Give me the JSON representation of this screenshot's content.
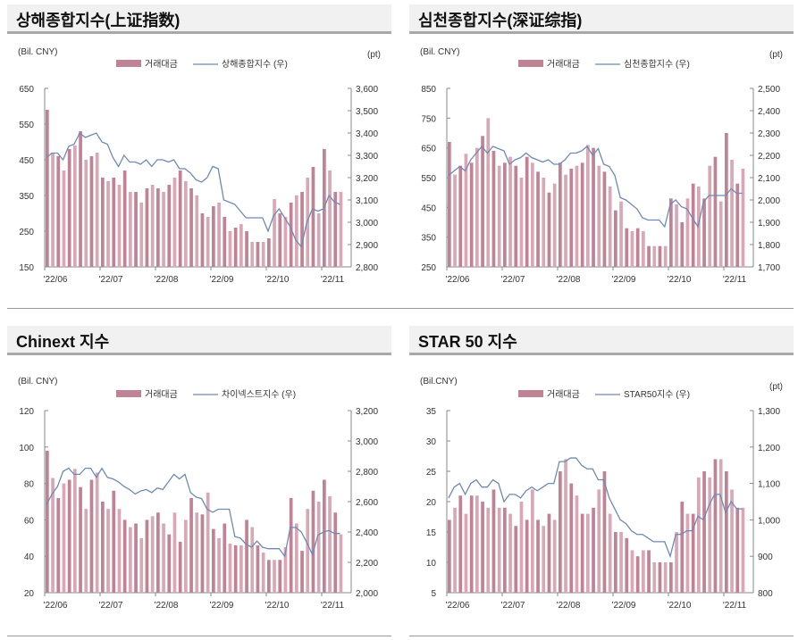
{
  "colors": {
    "bar": "#d7a9b7",
    "bar_dark": "#c08396",
    "line": "#6f89b5",
    "axis": "#888888"
  },
  "chart_data": [
    {
      "type": "bar+line",
      "title": "상해종합지수(上证指数)",
      "left_unit": "(Bil. CNY)",
      "right_unit": "(pt)",
      "legend": [
        "거래대금",
        "상해종합지수 (우)"
      ],
      "legend_placement": "top",
      "x_ticks": [
        "'22/06",
        "'22/07",
        "'22/08",
        "'22/09",
        "'22/10",
        "'22/11"
      ],
      "ylim_left": [
        150,
        650
      ],
      "yticks_left": [
        "650",
        "550",
        "450",
        "350",
        "250",
        "150"
      ],
      "ylim_right": [
        2800,
        3600
      ],
      "yticks_right": [
        "3,600",
        "3,500",
        "3,400",
        "3,300",
        "3,200",
        "3,100",
        "3,000",
        "2,900",
        "2,800"
      ],
      "series": [
        {
          "name": "거래대금",
          "axis": "left",
          "values": [
            590,
            470,
            460,
            420,
            480,
            490,
            530,
            450,
            460,
            470,
            400,
            390,
            400,
            380,
            420,
            360,
            360,
            330,
            370,
            380,
            370,
            360,
            380,
            400,
            420,
            390,
            370,
            350,
            300,
            290,
            320,
            330,
            290,
            250,
            260,
            270,
            250,
            220,
            220,
            220,
            230,
            340,
            300,
            290,
            330,
            350,
            360,
            400,
            430,
            300,
            480,
            420,
            360,
            360
          ]
        },
        {
          "name": "상해종합지수 (우)",
          "axis": "right",
          "values": [
            3290,
            3310,
            3310,
            3280,
            3340,
            3350,
            3400,
            3380,
            3390,
            3400,
            3360,
            3350,
            3290,
            3250,
            3300,
            3270,
            3270,
            3260,
            3280,
            3250,
            3280,
            3280,
            3270,
            3280,
            3240,
            3240,
            3220,
            3190,
            3180,
            3200,
            3250,
            3240,
            3100,
            3090,
            3080,
            3050,
            3020,
            3020,
            3020,
            3020,
            2960,
            3030,
            3060,
            3020,
            2980,
            2920,
            2890,
            3000,
            3060,
            3050,
            3060,
            3120,
            3090,
            3080
          ]
        }
      ]
    },
    {
      "type": "bar+line",
      "title": "심천종합지수(深证综指)",
      "left_unit": "(Bil. CNY)",
      "right_unit": "(pt)",
      "legend": [
        "거래대금",
        "심천종합지수 (우)"
      ],
      "legend_placement": "top",
      "x_ticks": [
        "'22/06",
        "'22/07",
        "'22/08",
        "'22/09",
        "'22/10",
        "'22/11"
      ],
      "ylim_left": [
        250,
        850
      ],
      "yticks_left": [
        "850",
        "750",
        "650",
        "550",
        "450",
        "350",
        "250"
      ],
      "ylim_right": [
        1700,
        2500
      ],
      "yticks_right": [
        "2,500",
        "2,400",
        "2,300",
        "2,200",
        "2,100",
        "2,000",
        "1,900",
        "1,800",
        "1,700"
      ],
      "series": [
        {
          "name": "거래대금",
          "axis": "left",
          "values": [
            670,
            560,
            590,
            630,
            600,
            650,
            690,
            750,
            640,
            590,
            600,
            620,
            590,
            550,
            620,
            600,
            570,
            550,
            500,
            530,
            600,
            560,
            580,
            590,
            600,
            660,
            650,
            590,
            570,
            520,
            440,
            470,
            380,
            370,
            380,
            370,
            320,
            320,
            320,
            320,
            480,
            460,
            400,
            480,
            530,
            520,
            480,
            590,
            620,
            470,
            700,
            610,
            530,
            580
          ]
        },
        {
          "name": "심천종합지수 (우)",
          "axis": "right",
          "values": [
            2110,
            2130,
            2150,
            2130,
            2180,
            2210,
            2240,
            2210,
            2240,
            2230,
            2220,
            2160,
            2180,
            2190,
            2210,
            2190,
            2180,
            2170,
            2180,
            2160,
            2160,
            2180,
            2210,
            2210,
            2220,
            2240,
            2200,
            2230,
            2160,
            2150,
            2110,
            2010,
            2000,
            1980,
            1960,
            1920,
            1910,
            1910,
            1910,
            1880,
            1980,
            2000,
            1970,
            1960,
            1920,
            1880,
            1990,
            2020,
            2020,
            2020,
            2020,
            2050,
            2030,
            2030
          ]
        }
      ]
    },
    {
      "type": "bar+line",
      "title": "Chinext 지수",
      "left_unit": "(Bil. CNY)",
      "right_unit": "",
      "legend": [
        "거래대금",
        "차이넥스트지수 (우)"
      ],
      "legend_placement": "top",
      "x_ticks": [
        "'22/06",
        "'22/07",
        "'22/08",
        "'22/09",
        "'22/10",
        "'22/11"
      ],
      "ylim_left": [
        20,
        120
      ],
      "yticks_left": [
        "120",
        "100",
        "80",
        "60",
        "40",
        "20"
      ],
      "ylim_right": [
        2000,
        3200
      ],
      "yticks_right": [
        "3,200",
        "3,000",
        "2,800",
        "2,600",
        "2,400",
        "2,200",
        "2,000"
      ],
      "series": [
        {
          "name": "거래대금",
          "axis": "left",
          "values": [
            98,
            83,
            72,
            80,
            82,
            88,
            78,
            66,
            82,
            86,
            70,
            66,
            76,
            66,
            60,
            56,
            58,
            50,
            60,
            62,
            64,
            58,
            52,
            64,
            48,
            60,
            72,
            64,
            63,
            75,
            55,
            50,
            58,
            47,
            46,
            46,
            60,
            56,
            46,
            42,
            38,
            38,
            38,
            45,
            72,
            58,
            43,
            66,
            76,
            70,
            82,
            73,
            64,
            52
          ]
        },
        {
          "name": "차이넥스트지수 (우)",
          "axis": "right",
          "values": [
            2580,
            2650,
            2700,
            2800,
            2820,
            2780,
            2780,
            2820,
            2820,
            2760,
            2820,
            2760,
            2750,
            2730,
            2700,
            2680,
            2650,
            2670,
            2680,
            2660,
            2690,
            2680,
            2730,
            2780,
            2750,
            2780,
            2660,
            2630,
            2620,
            2550,
            2530,
            2550,
            2550,
            2550,
            2370,
            2360,
            2320,
            2300,
            2340,
            2300,
            2290,
            2290,
            2290,
            2240,
            2430,
            2430,
            2400,
            2330,
            2250,
            2380,
            2400,
            2410,
            2390,
            2390
          ]
        }
      ]
    },
    {
      "type": "bar+line",
      "title": "STAR 50 지수",
      "left_unit": "(Bil.CNY)",
      "right_unit": "(pt)",
      "legend": [
        "거래대금",
        "STAR50지수 (우)"
      ],
      "legend_placement": "top",
      "x_ticks": [
        "'22/06",
        "'22/07",
        "'22/08",
        "'22/09",
        "'22/10",
        "'22/11"
      ],
      "ylim_left": [
        5,
        35
      ],
      "yticks_left": [
        "35",
        "30",
        "25",
        "20",
        "15",
        "10",
        "5"
      ],
      "ylim_right": [
        800,
        1300
      ],
      "yticks_right": [
        "1,300",
        "1,200",
        "1,100",
        "1,000",
        "900",
        "800"
      ],
      "series": [
        {
          "name": "거래대금",
          "axis": "left",
          "values": [
            17,
            19,
            21,
            18,
            21,
            21,
            20,
            19,
            22,
            19,
            19,
            18,
            16,
            20,
            17,
            22,
            17,
            16,
            18,
            17,
            25,
            27,
            23,
            21,
            18,
            18,
            19,
            22,
            25,
            18,
            15,
            15,
            14,
            12,
            11,
            12,
            12,
            10,
            10,
            10,
            10,
            15,
            20,
            18,
            18,
            24,
            25,
            24,
            27,
            27,
            25,
            22,
            19,
            19
          ]
        },
        {
          "name": "STAR50지수 (우)",
          "axis": "right",
          "values": [
            1060,
            1090,
            1100,
            1070,
            1100,
            1110,
            1090,
            1090,
            1110,
            1100,
            1050,
            1070,
            1070,
            1060,
            1080,
            1090,
            1080,
            1090,
            1100,
            1100,
            1160,
            1160,
            1170,
            1170,
            1150,
            1140,
            1140,
            1110,
            1110,
            1060,
            1030,
            1000,
            990,
            970,
            960,
            960,
            950,
            940,
            940,
            940,
            900,
            960,
            960,
            970,
            970,
            1010,
            1000,
            1040,
            1070,
            1070,
            1020,
            1050,
            1030,
            1030
          ]
        }
      ]
    }
  ]
}
